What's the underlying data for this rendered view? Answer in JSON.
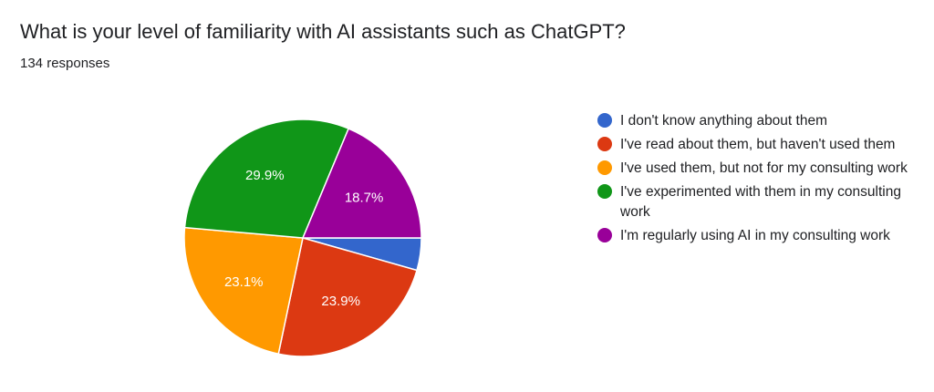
{
  "header": {
    "title": "What is your level of familiarity with AI assistants such as ChatGPT?",
    "responses": "134 responses"
  },
  "legend": {
    "items": [
      {
        "label": "I don't know anything about them",
        "color": "#3366cc"
      },
      {
        "label": "I've read about them, but haven't used them",
        "color": "#dc3912"
      },
      {
        "label": "I've used them, but not for my consulting work",
        "color": "#ff9900"
      },
      {
        "label": "I've experimented with them in my consulting work",
        "color": "#109618"
      },
      {
        "label": "I'm regularly using AI in my consulting work",
        "color": "#990099"
      }
    ]
  },
  "slices": {
    "labels": [
      "",
      "23.9%",
      "23.1%",
      "29.9%",
      "18.7%"
    ]
  },
  "chart_data": {
    "type": "pie",
    "title": "What is your level of familiarity with AI assistants such as ChatGPT?",
    "subtitle": "134 responses",
    "categories": [
      "I don't know anything about them",
      "I've read about them, but haven't used them",
      "I've used them, but not for my consulting work",
      "I've experimented with them in my consulting work",
      "I'm regularly using AI in my consulting work"
    ],
    "values": [
      4.4,
      23.9,
      23.1,
      29.9,
      18.7
    ],
    "colors": [
      "#3366cc",
      "#dc3912",
      "#ff9900",
      "#109618",
      "#990099"
    ],
    "data_labels": [
      "",
      "23.9%",
      "23.1%",
      "29.9%",
      "18.7%"
    ],
    "legend_position": "right",
    "start_angle_deg": 90,
    "direction": "clockwise"
  }
}
